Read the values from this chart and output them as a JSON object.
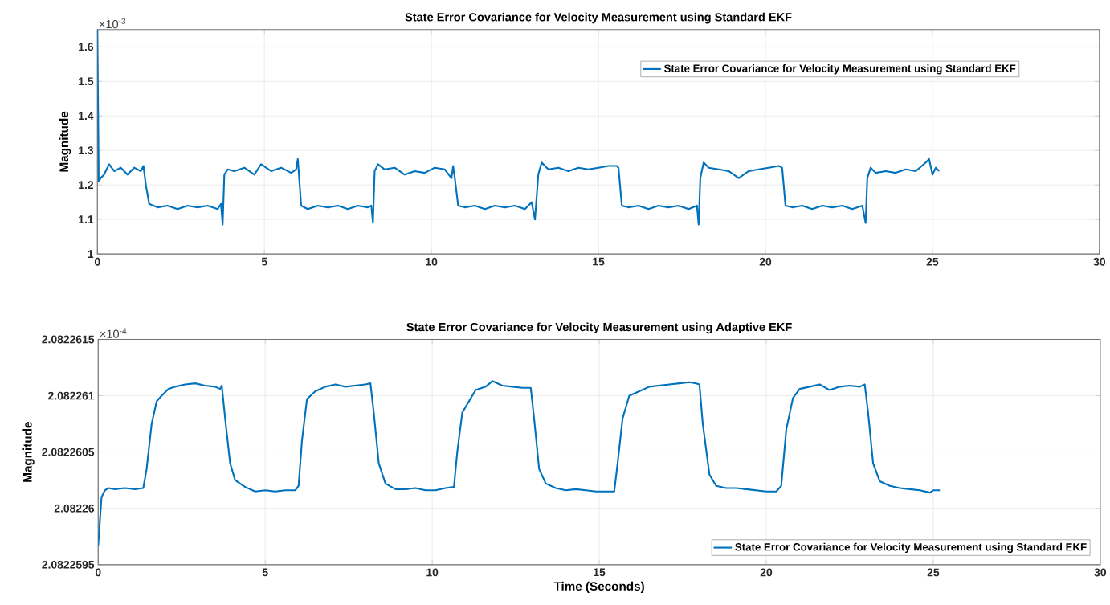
{
  "chart_data": [
    {
      "type": "line",
      "title": "State Error Covariance for Velocity Measurement using Standard EKF",
      "ylabel": "Magnitude",
      "annotations": [
        "×10$^{-3}$"
      ],
      "grid": true,
      "legend": "top right",
      "xlim": [
        0,
        30
      ],
      "xticks": [
        0,
        5,
        10,
        15,
        20,
        25,
        30
      ],
      "ylim": [
        1,
        1.65
      ],
      "yticks": [
        1,
        1.1,
        1.2,
        1.3,
        1.4,
        1.5,
        1.6
      ],
      "x": [
        0,
        0.04,
        0.1,
        0.2,
        0.35,
        0.5,
        0.7,
        0.9,
        1.1,
        1.3,
        1.38,
        1.45,
        1.55,
        1.8,
        2.1,
        2.4,
        2.7,
        3.0,
        3.3,
        3.6,
        3.7,
        3.75,
        3.8,
        3.9,
        4.1,
        4.4,
        4.7,
        4.9,
        5.2,
        5.5,
        5.8,
        5.95,
        6.0,
        6.1,
        6.3,
        6.6,
        6.9,
        7.2,
        7.5,
        7.8,
        8.1,
        8.2,
        8.25,
        8.3,
        8.4,
        8.6,
        8.9,
        9.2,
        9.5,
        9.8,
        10.1,
        10.4,
        10.6,
        10.65,
        10.7,
        10.8,
        11.0,
        11.3,
        11.6,
        11.9,
        12.2,
        12.5,
        12.8,
        13.0,
        13.1,
        13.2,
        13.3,
        13.5,
        13.8,
        14.1,
        14.4,
        14.7,
        15.0,
        15.3,
        15.55,
        15.6,
        15.7,
        15.9,
        16.2,
        16.5,
        16.8,
        17.1,
        17.4,
        17.7,
        17.95,
        18.0,
        18.05,
        18.15,
        18.3,
        18.6,
        18.9,
        19.2,
        19.5,
        19.8,
        20.1,
        20.4,
        20.5,
        20.6,
        20.8,
        21.1,
        21.4,
        21.7,
        22.0,
        22.3,
        22.6,
        22.9,
        23.0,
        23.05,
        23.15,
        23.3,
        23.6,
        23.9,
        24.2,
        24.5,
        24.8,
        24.9,
        25.0,
        25.1,
        25.2
      ],
      "series": [
        {
          "name": "State Error Covariance for Velocity Measurement using Standard EKF",
          "color": "#0072bd",
          "values": [
            1.65,
            1.21,
            1.22,
            1.23,
            1.26,
            1.24,
            1.25,
            1.23,
            1.25,
            1.24,
            1.255,
            1.2,
            1.145,
            1.135,
            1.14,
            1.13,
            1.14,
            1.135,
            1.14,
            1.13,
            1.145,
            1.085,
            1.23,
            1.245,
            1.24,
            1.25,
            1.23,
            1.26,
            1.24,
            1.25,
            1.235,
            1.245,
            1.275,
            1.14,
            1.13,
            1.14,
            1.135,
            1.14,
            1.13,
            1.14,
            1.135,
            1.14,
            1.09,
            1.24,
            1.26,
            1.245,
            1.25,
            1.23,
            1.24,
            1.235,
            1.25,
            1.245,
            1.22,
            1.255,
            1.22,
            1.14,
            1.135,
            1.14,
            1.13,
            1.14,
            1.135,
            1.14,
            1.13,
            1.15,
            1.1,
            1.23,
            1.265,
            1.245,
            1.25,
            1.24,
            1.25,
            1.245,
            1.25,
            1.255,
            1.255,
            1.25,
            1.14,
            1.135,
            1.14,
            1.13,
            1.14,
            1.135,
            1.14,
            1.13,
            1.14,
            1.085,
            1.22,
            1.265,
            1.25,
            1.245,
            1.24,
            1.22,
            1.24,
            1.245,
            1.25,
            1.255,
            1.25,
            1.14,
            1.135,
            1.14,
            1.13,
            1.14,
            1.135,
            1.14,
            1.13,
            1.14,
            1.09,
            1.22,
            1.25,
            1.235,
            1.24,
            1.235,
            1.245,
            1.24,
            1.265,
            1.275,
            1.23,
            1.25,
            1.24
          ]
        }
      ]
    },
    {
      "type": "line",
      "title": "State Error Covariance for Velocity Measurement using Adaptive EKF",
      "xlabel": "Time (Seconds)",
      "ylabel": "Magnitude",
      "annotations": [
        "×10$^{-4}$"
      ],
      "grid": true,
      "legend": "bottom right",
      "xlim": [
        0,
        30
      ],
      "xticks": [
        0,
        5,
        10,
        15,
        20,
        25,
        30
      ],
      "ylim": [
        2.0822595,
        2.0822615
      ],
      "yticks": [
        2.0822595,
        2.08226,
        2.0822605,
        2.082261,
        2.0822615
      ],
      "x": [
        0,
        0.1,
        0.2,
        0.3,
        0.5,
        0.8,
        1.1,
        1.35,
        1.45,
        1.6,
        1.75,
        1.9,
        2.1,
        2.3,
        2.6,
        2.9,
        3.2,
        3.5,
        3.65,
        3.7,
        3.8,
        3.95,
        4.1,
        4.4,
        4.7,
        5.0,
        5.3,
        5.6,
        5.9,
        6.0,
        6.1,
        6.25,
        6.5,
        6.8,
        7.1,
        7.4,
        7.7,
        8.0,
        8.15,
        8.25,
        8.4,
        8.6,
        8.9,
        9.2,
        9.5,
        9.8,
        10.1,
        10.4,
        10.65,
        10.75,
        10.9,
        11.1,
        11.3,
        11.6,
        11.8,
        12.1,
        12.4,
        12.7,
        12.95,
        13.05,
        13.2,
        13.4,
        13.7,
        14.0,
        14.3,
        14.6,
        14.9,
        15.2,
        15.45,
        15.55,
        15.7,
        15.9,
        16.2,
        16.5,
        16.8,
        17.1,
        17.4,
        17.7,
        17.9,
        18.0,
        18.1,
        18.3,
        18.5,
        18.8,
        19.1,
        19.4,
        19.7,
        20.0,
        20.3,
        20.45,
        20.6,
        20.8,
        21.0,
        21.3,
        21.6,
        21.9,
        22.2,
        22.5,
        22.8,
        22.95,
        23.05,
        23.2,
        23.4,
        23.7,
        24.0,
        24.3,
        24.6,
        24.9,
        25.0,
        25.2
      ],
      "series": [
        {
          "name": "State Error Covariance for Velocity Measurement using Standard EKF",
          "color": "#0072bd",
          "values": [
            2.08225967,
            2.0822601,
            2.08226016,
            2.08226018,
            2.08226017,
            2.08226018,
            2.08226017,
            2.08226018,
            2.08226035,
            2.08226075,
            2.08226095,
            2.082261,
            2.08226106,
            2.08226108,
            2.0822611,
            2.08226111,
            2.08226109,
            2.08226108,
            2.08226106,
            2.08226109,
            2.0822608,
            2.0822604,
            2.08226025,
            2.08226019,
            2.08226015,
            2.08226016,
            2.08226015,
            2.08226016,
            2.08226016,
            2.0822602,
            2.0822606,
            2.08226097,
            2.08226104,
            2.08226108,
            2.0822611,
            2.08226108,
            2.08226109,
            2.0822611,
            2.08226111,
            2.08226085,
            2.0822604,
            2.08226022,
            2.08226017,
            2.08226017,
            2.08226018,
            2.08226016,
            2.08226016,
            2.08226018,
            2.08226019,
            2.0822605,
            2.08226085,
            2.08226095,
            2.08226105,
            2.08226108,
            2.08226113,
            2.08226109,
            2.08226108,
            2.08226107,
            2.08226107,
            2.0822608,
            2.08226035,
            2.08226022,
            2.08226018,
            2.08226016,
            2.08226017,
            2.08226016,
            2.08226015,
            2.08226015,
            2.08226015,
            2.0822604,
            2.0822608,
            2.082261,
            2.08226104,
            2.08226108,
            2.08226109,
            2.0822611,
            2.08226111,
            2.08226112,
            2.08226111,
            2.0822611,
            2.08226075,
            2.0822603,
            2.0822602,
            2.08226018,
            2.08226018,
            2.08226017,
            2.08226016,
            2.08226015,
            2.08226015,
            2.0822602,
            2.0822607,
            2.08226098,
            2.08226106,
            2.08226108,
            2.0822611,
            2.08226105,
            2.08226108,
            2.08226109,
            2.08226108,
            2.0822611,
            2.08226085,
            2.0822604,
            2.08226024,
            2.0822602,
            2.08226018,
            2.08226017,
            2.08226016,
            2.08226014,
            2.08226016,
            2.08226016
          ]
        }
      ]
    }
  ]
}
